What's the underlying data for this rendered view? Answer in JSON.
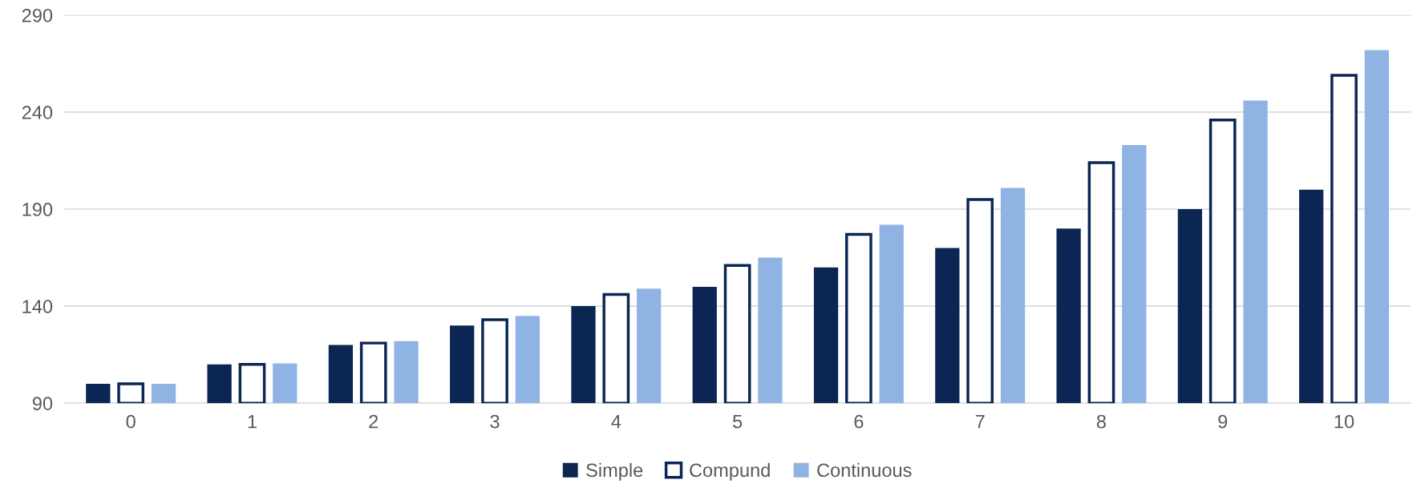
{
  "chart_data": {
    "type": "bar",
    "categories": [
      "0",
      "1",
      "2",
      "3",
      "4",
      "5",
      "6",
      "7",
      "8",
      "9",
      "10"
    ],
    "series": [
      {
        "name": "Simple",
        "color": "#0b2653",
        "values": [
          100,
          110,
          120,
          130,
          140,
          150,
          160,
          170,
          180,
          190,
          200
        ]
      },
      {
        "name": "Compund",
        "color": "#ffffff",
        "values": [
          100,
          110,
          121,
          133,
          146,
          161,
          177,
          195,
          214,
          236,
          259
        ]
      },
      {
        "name": "Continuous",
        "color": "#8fb4e3",
        "values": [
          100,
          110.5,
          122,
          135,
          149,
          165,
          182,
          201,
          223,
          246,
          272
        ]
      }
    ],
    "ylim": [
      90,
      290
    ],
    "yticks": [
      90,
      140,
      190,
      240,
      290
    ],
    "grid": "y",
    "legend": "bottom"
  }
}
